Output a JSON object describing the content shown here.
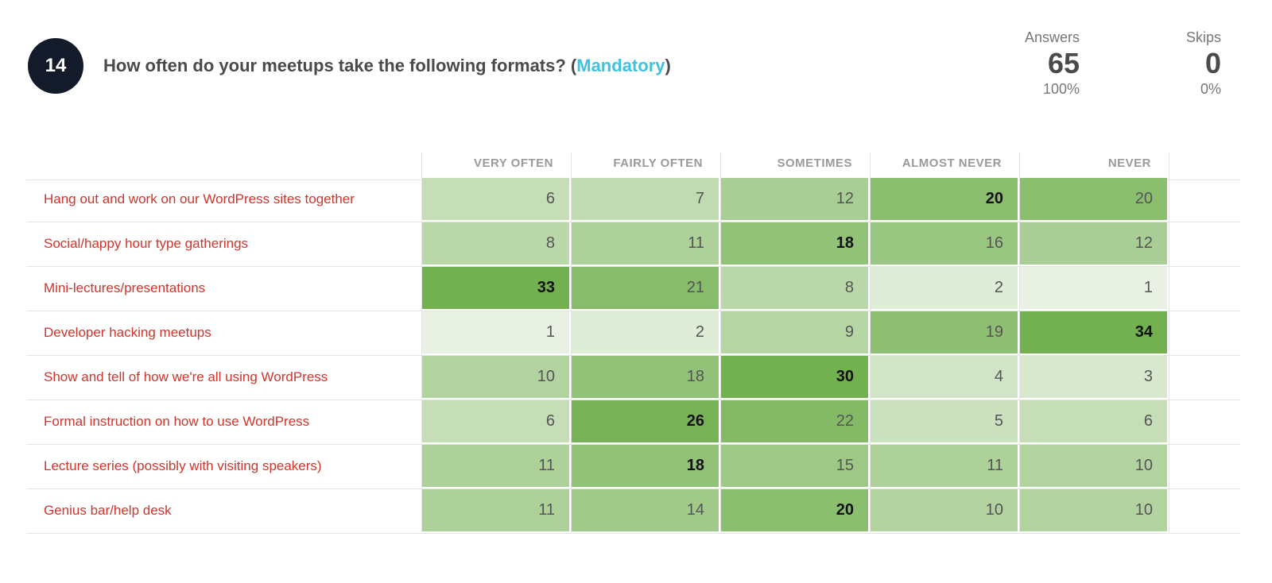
{
  "question": {
    "number": "14",
    "title": "How often do your meetups take the following formats? (",
    "mandatory_label": "Mandatory",
    "title_close": ")"
  },
  "stats": {
    "answers": {
      "label": "Answers",
      "value": "65",
      "percent": "100%"
    },
    "skips": {
      "label": "Skips",
      "value": "0",
      "percent": "0%"
    }
  },
  "colors": {
    "label_text": "#d0342c",
    "mandatory": "#3cc3e0",
    "badge_bg": "#131a2a",
    "heat_low": "#f7f9f6",
    "heat_high": "#72b050"
  },
  "chart_data": {
    "type": "heatmap",
    "columns": [
      "VERY OFTEN",
      "FAIRLY OFTEN",
      "SOMETIMES",
      "ALMOST NEVER",
      "NEVER"
    ],
    "rows": [
      {
        "label": "Hang out and work on our WordPress sites together",
        "values": [
          6,
          7,
          12,
          20,
          20
        ]
      },
      {
        "label": "Social/happy hour type gatherings",
        "values": [
          8,
          11,
          18,
          16,
          12
        ]
      },
      {
        "label": "Mini-lectures/presentations",
        "values": [
          33,
          21,
          8,
          2,
          1
        ]
      },
      {
        "label": "Developer hacking meetups",
        "values": [
          1,
          2,
          9,
          19,
          34
        ]
      },
      {
        "label": "Show and tell of how we're all using WordPress",
        "values": [
          10,
          18,
          30,
          4,
          3
        ]
      },
      {
        "label": "Formal instruction on how to use WordPress",
        "values": [
          6,
          26,
          22,
          5,
          6
        ]
      },
      {
        "label": "Lecture series (possibly with visiting speakers)",
        "values": [
          11,
          18,
          15,
          11,
          10
        ]
      },
      {
        "label": "Genius bar/help desk",
        "values": [
          11,
          14,
          20,
          10,
          10
        ]
      }
    ]
  }
}
